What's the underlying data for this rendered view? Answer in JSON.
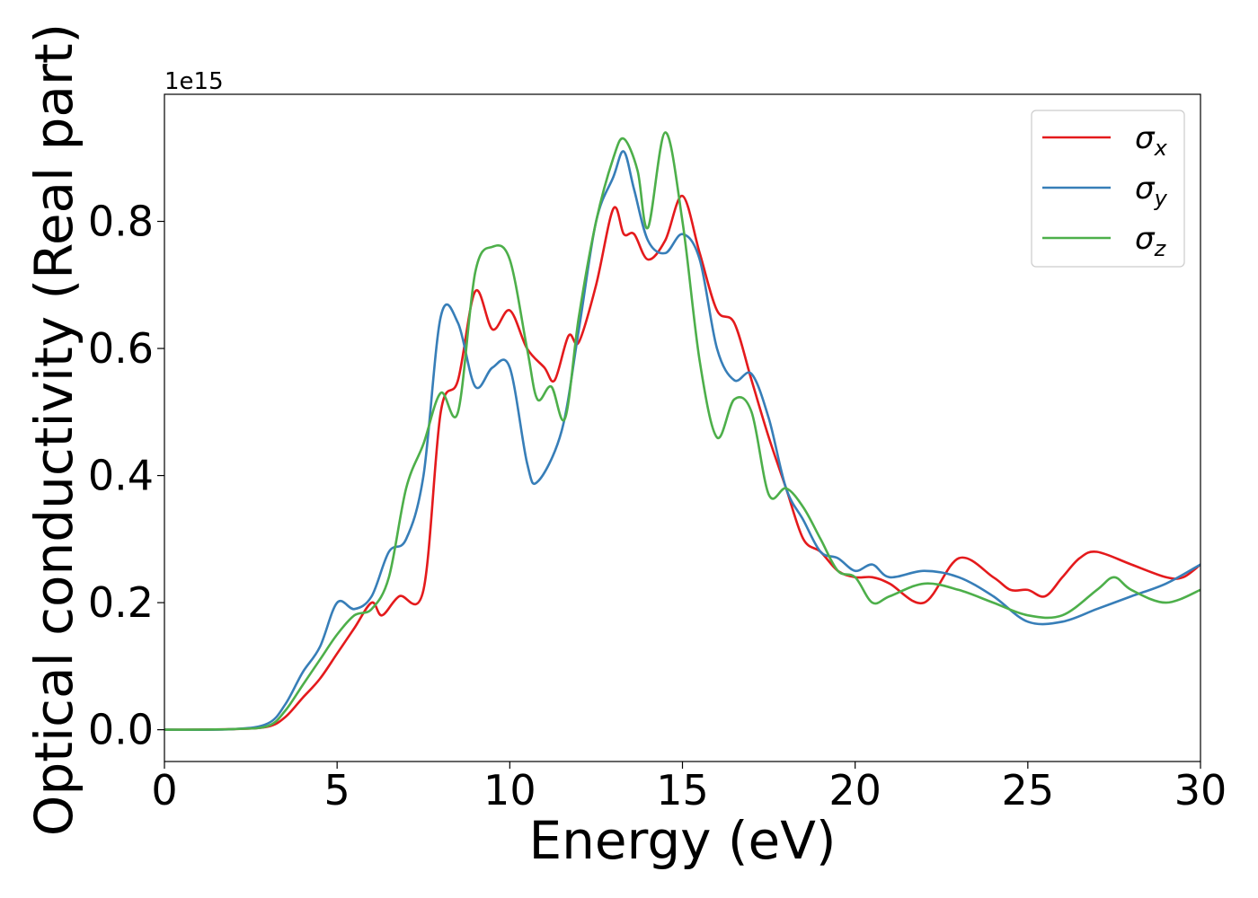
{
  "chart_data": {
    "type": "line",
    "xlabel": "Energy (eV)",
    "ylabel": "Optical conductivity (Real part)",
    "offset_text": "1e15",
    "xlim": [
      0,
      30
    ],
    "ylim": [
      -0.05,
      1.0
    ],
    "xticks": [
      0,
      5,
      10,
      15,
      20,
      25,
      30
    ],
    "yticks": [
      0.0,
      0.2,
      0.4,
      0.6,
      0.8
    ],
    "grid": false,
    "legend_position": "top-right",
    "series": [
      {
        "name": "σx",
        "legend_symbol": "σ",
        "legend_subscript": "x",
        "color": "#e41a1c",
        "points": [
          [
            0,
            0
          ],
          [
            2,
            0.001
          ],
          [
            3,
            0.005
          ],
          [
            3.5,
            0.02
          ],
          [
            4,
            0.05
          ],
          [
            4.5,
            0.08
          ],
          [
            5,
            0.12
          ],
          [
            5.5,
            0.16
          ],
          [
            6,
            0.2
          ],
          [
            6.3,
            0.18
          ],
          [
            6.8,
            0.21
          ],
          [
            7.5,
            0.22
          ],
          [
            8,
            0.5
          ],
          [
            8.5,
            0.55
          ],
          [
            9,
            0.69
          ],
          [
            9.5,
            0.63
          ],
          [
            10,
            0.66
          ],
          [
            10.5,
            0.6
          ],
          [
            11,
            0.57
          ],
          [
            11.3,
            0.55
          ],
          [
            11.7,
            0.62
          ],
          [
            12,
            0.61
          ],
          [
            12.5,
            0.7
          ],
          [
            13,
            0.82
          ],
          [
            13.3,
            0.78
          ],
          [
            13.6,
            0.78
          ],
          [
            14,
            0.74
          ],
          [
            14.5,
            0.77
          ],
          [
            15,
            0.84
          ],
          [
            15.5,
            0.75
          ],
          [
            16,
            0.66
          ],
          [
            16.5,
            0.64
          ],
          [
            17,
            0.55
          ],
          [
            17.5,
            0.46
          ],
          [
            18,
            0.38
          ],
          [
            18.5,
            0.3
          ],
          [
            19,
            0.28
          ],
          [
            19.5,
            0.25
          ],
          [
            20,
            0.24
          ],
          [
            20.5,
            0.24
          ],
          [
            21,
            0.23
          ],
          [
            22,
            0.2
          ],
          [
            23,
            0.27
          ],
          [
            24,
            0.24
          ],
          [
            24.5,
            0.22
          ],
          [
            25,
            0.22
          ],
          [
            25.5,
            0.21
          ],
          [
            26,
            0.24
          ],
          [
            26.5,
            0.27
          ],
          [
            27,
            0.28
          ],
          [
            28,
            0.26
          ],
          [
            29,
            0.24
          ],
          [
            29.5,
            0.24
          ],
          [
            30,
            0.26
          ]
        ]
      },
      {
        "name": "σy",
        "legend_symbol": "σ",
        "legend_subscript": "y",
        "color": "#377eb8",
        "points": [
          [
            0,
            0
          ],
          [
            2,
            0.001
          ],
          [
            3,
            0.01
          ],
          [
            3.5,
            0.04
          ],
          [
            4,
            0.09
          ],
          [
            4.5,
            0.13
          ],
          [
            5,
            0.2
          ],
          [
            5.5,
            0.19
          ],
          [
            6,
            0.21
          ],
          [
            6.5,
            0.28
          ],
          [
            7,
            0.3
          ],
          [
            7.5,
            0.4
          ],
          [
            8,
            0.65
          ],
          [
            8.5,
            0.64
          ],
          [
            9,
            0.54
          ],
          [
            9.5,
            0.57
          ],
          [
            10,
            0.57
          ],
          [
            10.5,
            0.42
          ],
          [
            10.8,
            0.39
          ],
          [
            11.5,
            0.47
          ],
          [
            12,
            0.63
          ],
          [
            12.5,
            0.8
          ],
          [
            13,
            0.87
          ],
          [
            13.3,
            0.91
          ],
          [
            13.6,
            0.85
          ],
          [
            14,
            0.77
          ],
          [
            14.5,
            0.75
          ],
          [
            15,
            0.78
          ],
          [
            15.5,
            0.74
          ],
          [
            16,
            0.6
          ],
          [
            16.5,
            0.55
          ],
          [
            17,
            0.56
          ],
          [
            17.5,
            0.49
          ],
          [
            18,
            0.38
          ],
          [
            18.5,
            0.33
          ],
          [
            19,
            0.28
          ],
          [
            19.5,
            0.27
          ],
          [
            20,
            0.25
          ],
          [
            20.5,
            0.26
          ],
          [
            21,
            0.24
          ],
          [
            22,
            0.25
          ],
          [
            23,
            0.24
          ],
          [
            24,
            0.21
          ],
          [
            25,
            0.17
          ],
          [
            26,
            0.17
          ],
          [
            27,
            0.19
          ],
          [
            28,
            0.21
          ],
          [
            29,
            0.23
          ],
          [
            30,
            0.26
          ]
        ]
      },
      {
        "name": "σz",
        "legend_symbol": "σ",
        "legend_subscript": "z",
        "color": "#4daf4a",
        "points": [
          [
            0,
            0
          ],
          [
            2,
            0.001
          ],
          [
            3,
            0.006
          ],
          [
            3.5,
            0.03
          ],
          [
            4,
            0.07
          ],
          [
            4.5,
            0.11
          ],
          [
            5,
            0.15
          ],
          [
            5.5,
            0.18
          ],
          [
            6,
            0.19
          ],
          [
            6.5,
            0.24
          ],
          [
            7,
            0.38
          ],
          [
            7.5,
            0.45
          ],
          [
            8,
            0.53
          ],
          [
            8.5,
            0.5
          ],
          [
            9,
            0.72
          ],
          [
            9.5,
            0.76
          ],
          [
            10,
            0.74
          ],
          [
            10.5,
            0.6
          ],
          [
            10.8,
            0.52
          ],
          [
            11.2,
            0.54
          ],
          [
            11.6,
            0.49
          ],
          [
            12,
            0.65
          ],
          [
            12.5,
            0.8
          ],
          [
            13,
            0.9
          ],
          [
            13.3,
            0.93
          ],
          [
            13.7,
            0.88
          ],
          [
            14,
            0.79
          ],
          [
            14.5,
            0.94
          ],
          [
            15,
            0.8
          ],
          [
            15.5,
            0.58
          ],
          [
            16,
            0.46
          ],
          [
            16.5,
            0.52
          ],
          [
            17,
            0.5
          ],
          [
            17.5,
            0.37
          ],
          [
            18,
            0.38
          ],
          [
            18.5,
            0.35
          ],
          [
            19,
            0.3
          ],
          [
            19.5,
            0.25
          ],
          [
            20,
            0.24
          ],
          [
            20.5,
            0.2
          ],
          [
            21,
            0.21
          ],
          [
            22,
            0.23
          ],
          [
            23,
            0.22
          ],
          [
            24,
            0.2
          ],
          [
            25,
            0.18
          ],
          [
            26,
            0.18
          ],
          [
            27,
            0.22
          ],
          [
            27.5,
            0.24
          ],
          [
            28,
            0.22
          ],
          [
            29,
            0.2
          ],
          [
            30,
            0.22
          ]
        ]
      }
    ]
  }
}
